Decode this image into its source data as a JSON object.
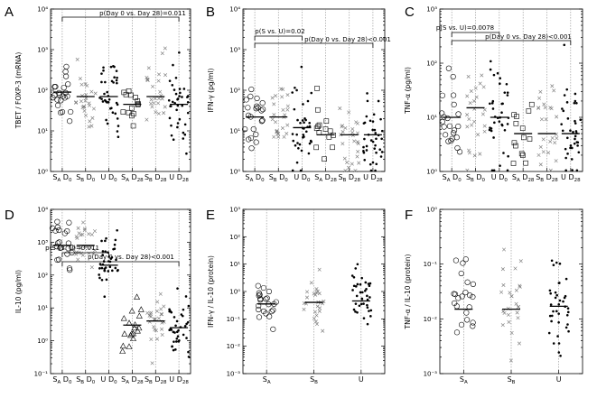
{
  "chart_data": [
    {
      "panel": "A",
      "type": "scatter",
      "ylabel": "TBET / FOXP-3 (mRNA)",
      "ytick_labels": [
        "10⁰",
        "10¹",
        "10²",
        "10³",
        "10⁴"
      ],
      "ylim_log10": [
        0,
        4
      ],
      "categories": [
        {
          "main": "S",
          "sub1": "A",
          "main2": "D",
          "sub2": "0",
          "marker": "circle",
          "median": 90
        },
        {
          "main": "S",
          "sub1": "B",
          "main2": "D",
          "sub2": "0",
          "marker": "x",
          "median": 70
        },
        {
          "main": "",
          "sub1": "",
          "main2": "U D",
          "sub2": "0",
          "marker": "dot",
          "median": 70
        },
        {
          "main": "S",
          "sub1": "A",
          "main2": "D",
          "sub2": "28",
          "marker": "square",
          "median": 45
        },
        {
          "main": "S",
          "sub1": "B",
          "main2": "D",
          "sub2": "28",
          "marker": "x",
          "median": 70
        },
        {
          "main": "",
          "sub1": "",
          "main2": "U D",
          "sub2": "28",
          "marker": "dot",
          "median": 45
        }
      ],
      "annotations": [
        {
          "text": "p(Day 0 vs. Day 28)=0.011"
        }
      ]
    },
    {
      "panel": "B",
      "type": "scatter",
      "ylabel": "IFN-γ (pg/ml)",
      "ytick_labels": [
        "10⁰",
        "10¹",
        "10²",
        "10³",
        "10⁴"
      ],
      "ylim_log10": [
        0,
        4
      ],
      "categories": [
        {
          "main": "S",
          "sub1": "A",
          "main2": "D",
          "sub2": "0",
          "marker": "circle",
          "median": 22
        },
        {
          "main": "S",
          "sub1": "B",
          "main2": "D",
          "sub2": "0",
          "marker": "x",
          "median": 22
        },
        {
          "main": "",
          "sub1": "",
          "main2": "U D",
          "sub2": "0",
          "marker": "dot",
          "median": 12
        },
        {
          "main": "S",
          "sub1": "A",
          "main2": "D",
          "sub2": "28",
          "marker": "square",
          "median": 8
        },
        {
          "main": "S",
          "sub1": "B",
          "main2": "D",
          "sub2": "28",
          "marker": "x",
          "median": 8
        },
        {
          "main": "",
          "sub1": "",
          "main2": "U D",
          "sub2": "28",
          "marker": "dot",
          "median": 8
        }
      ],
      "annotations": [
        {
          "text": "p(S vs. U)=0.02"
        },
        {
          "text": "p(Day 0 vs. Day 28)<0.001"
        }
      ]
    },
    {
      "panel": "C",
      "type": "scatter",
      "ylabel": "TNF-α (pg/ml)",
      "ytick_labels": [
        "10⁰",
        "10¹",
        "10²",
        "10³"
      ],
      "ylim_log10": [
        0,
        3
      ],
      "categories": [
        {
          "main": "S",
          "sub1": "A",
          "main2": "D",
          "sub2": "0",
          "marker": "circle",
          "median": 10
        },
        {
          "main": "S",
          "sub1": "B",
          "main2": "D",
          "sub2": "0",
          "marker": "x",
          "median": 15
        },
        {
          "main": "",
          "sub1": "",
          "main2": "U D",
          "sub2": "0",
          "marker": "dot",
          "median": 10
        },
        {
          "main": "S",
          "sub1": "A",
          "main2": "D",
          "sub2": "28",
          "marker": "square",
          "median": 5
        },
        {
          "main": "S",
          "sub1": "B",
          "main2": "D",
          "sub2": "28",
          "marker": "x",
          "median": 5
        },
        {
          "main": "",
          "sub1": "",
          "main2": "U D",
          "sub2": "28",
          "marker": "dot",
          "median": 5
        }
      ],
      "annotations": [
        {
          "text": "p(S vs. U)=0.0078"
        },
        {
          "text": "p(Day 0 vs. Day 28)<0.001"
        }
      ]
    },
    {
      "panel": "D",
      "type": "scatter",
      "ylabel": "IL-10 (pg/ml)",
      "ytick_labels": [
        "10⁻¹",
        "10⁰",
        "10¹",
        "10²",
        "10³",
        "10⁴"
      ],
      "ylim_log10": [
        -1,
        4
      ],
      "categories": [
        {
          "main": "S",
          "sub1": "A",
          "main2": "D",
          "sub2": "0",
          "marker": "circle",
          "median": 800
        },
        {
          "main": "S",
          "sub1": "B",
          "main2": "D",
          "sub2": "0",
          "marker": "x",
          "median": 800
        },
        {
          "main": "",
          "sub1": "",
          "main2": "U D",
          "sub2": "0",
          "marker": "dot",
          "median": 200
        },
        {
          "main": "S",
          "sub1": "A",
          "main2": "D",
          "sub2": "28",
          "marker": "triangle",
          "median": 3
        },
        {
          "main": "S",
          "sub1": "B",
          "main2": "D",
          "sub2": "28",
          "marker": "x",
          "median": 4
        },
        {
          "main": "",
          "sub1": "",
          "main2": "U D",
          "sub2": "28",
          "marker": "dot",
          "median": 2.5
        }
      ],
      "annotations": [
        {
          "text": "p(S vs. U)=0.011"
        },
        {
          "text": "p(Day 0 vs. Day 28)<0.001"
        }
      ]
    },
    {
      "panel": "E",
      "type": "scatter",
      "ylabel": "IFN-γ / IL-10 (protein)",
      "ytick_labels": [
        "10⁻³",
        "10⁻²",
        "10⁻¹",
        "10⁰",
        "10¹",
        "10²",
        "10³"
      ],
      "ylim_log10": [
        -3,
        3
      ],
      "categories": [
        {
          "main": "S",
          "sub1": "A",
          "main2": "",
          "sub2": "",
          "marker": "circle",
          "median": 0.35
        },
        {
          "main": "S",
          "sub1": "B",
          "main2": "",
          "sub2": "",
          "marker": "x",
          "median": 0.4
        },
        {
          "main": "U",
          "sub1": "",
          "main2": "",
          "sub2": "",
          "marker": "dot",
          "median": 0.45
        }
      ],
      "annotations": []
    },
    {
      "panel": "F",
      "type": "scatter",
      "ylabel": "TNF-α / IL-10 (protein)",
      "ytick_labels": [
        "10⁻³",
        "10⁻²",
        "10⁻¹",
        "10⁰"
      ],
      "ylim_log10": [
        -3,
        0
      ],
      "categories": [
        {
          "main": "S",
          "sub1": "A",
          "main2": "",
          "sub2": "",
          "marker": "circle",
          "median": 0.015
        },
        {
          "main": "S",
          "sub1": "B",
          "main2": "",
          "sub2": "",
          "marker": "x",
          "median": 0.015
        },
        {
          "main": "U",
          "sub1": "",
          "main2": "",
          "sub2": "",
          "marker": "dot",
          "median": 0.017
        }
      ],
      "annotations": []
    }
  ]
}
